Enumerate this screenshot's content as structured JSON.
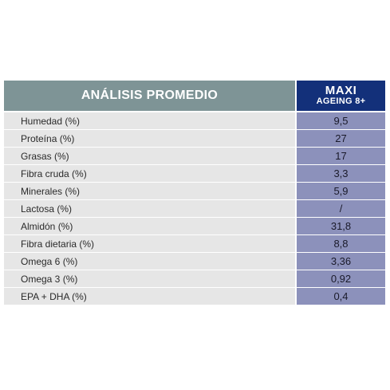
{
  "header": {
    "title": "ANÁLISIS PROMEDIO",
    "product_name": "MAXI",
    "product_variant": "AGEING 8+"
  },
  "rows": [
    {
      "label": "Humedad (%)",
      "value": "9,5"
    },
    {
      "label": "Proteína (%)",
      "value": "27"
    },
    {
      "label": "Grasas (%)",
      "value": "17"
    },
    {
      "label": "Fibra cruda (%)",
      "value": "3,3"
    },
    {
      "label": "Minerales (%)",
      "value": "5,9"
    },
    {
      "label": "Lactosa (%)",
      "value": "/"
    },
    {
      "label": "Almidón (%)",
      "value": "31,8"
    },
    {
      "label": "Fibra dietaria (%)",
      "value": "8,8"
    },
    {
      "label": "Omega 6 (%)",
      "value": "3,36"
    },
    {
      "label": "Omega 3 (%)",
      "value": "0,92"
    },
    {
      "label": "EPA + DHA (%)",
      "value": "0,4"
    }
  ],
  "colors": {
    "header_left_bg": "#7e9496",
    "header_right_bg": "#13307a",
    "label_bg": "#e6e6e6",
    "value_bg": "#8c91bb"
  }
}
